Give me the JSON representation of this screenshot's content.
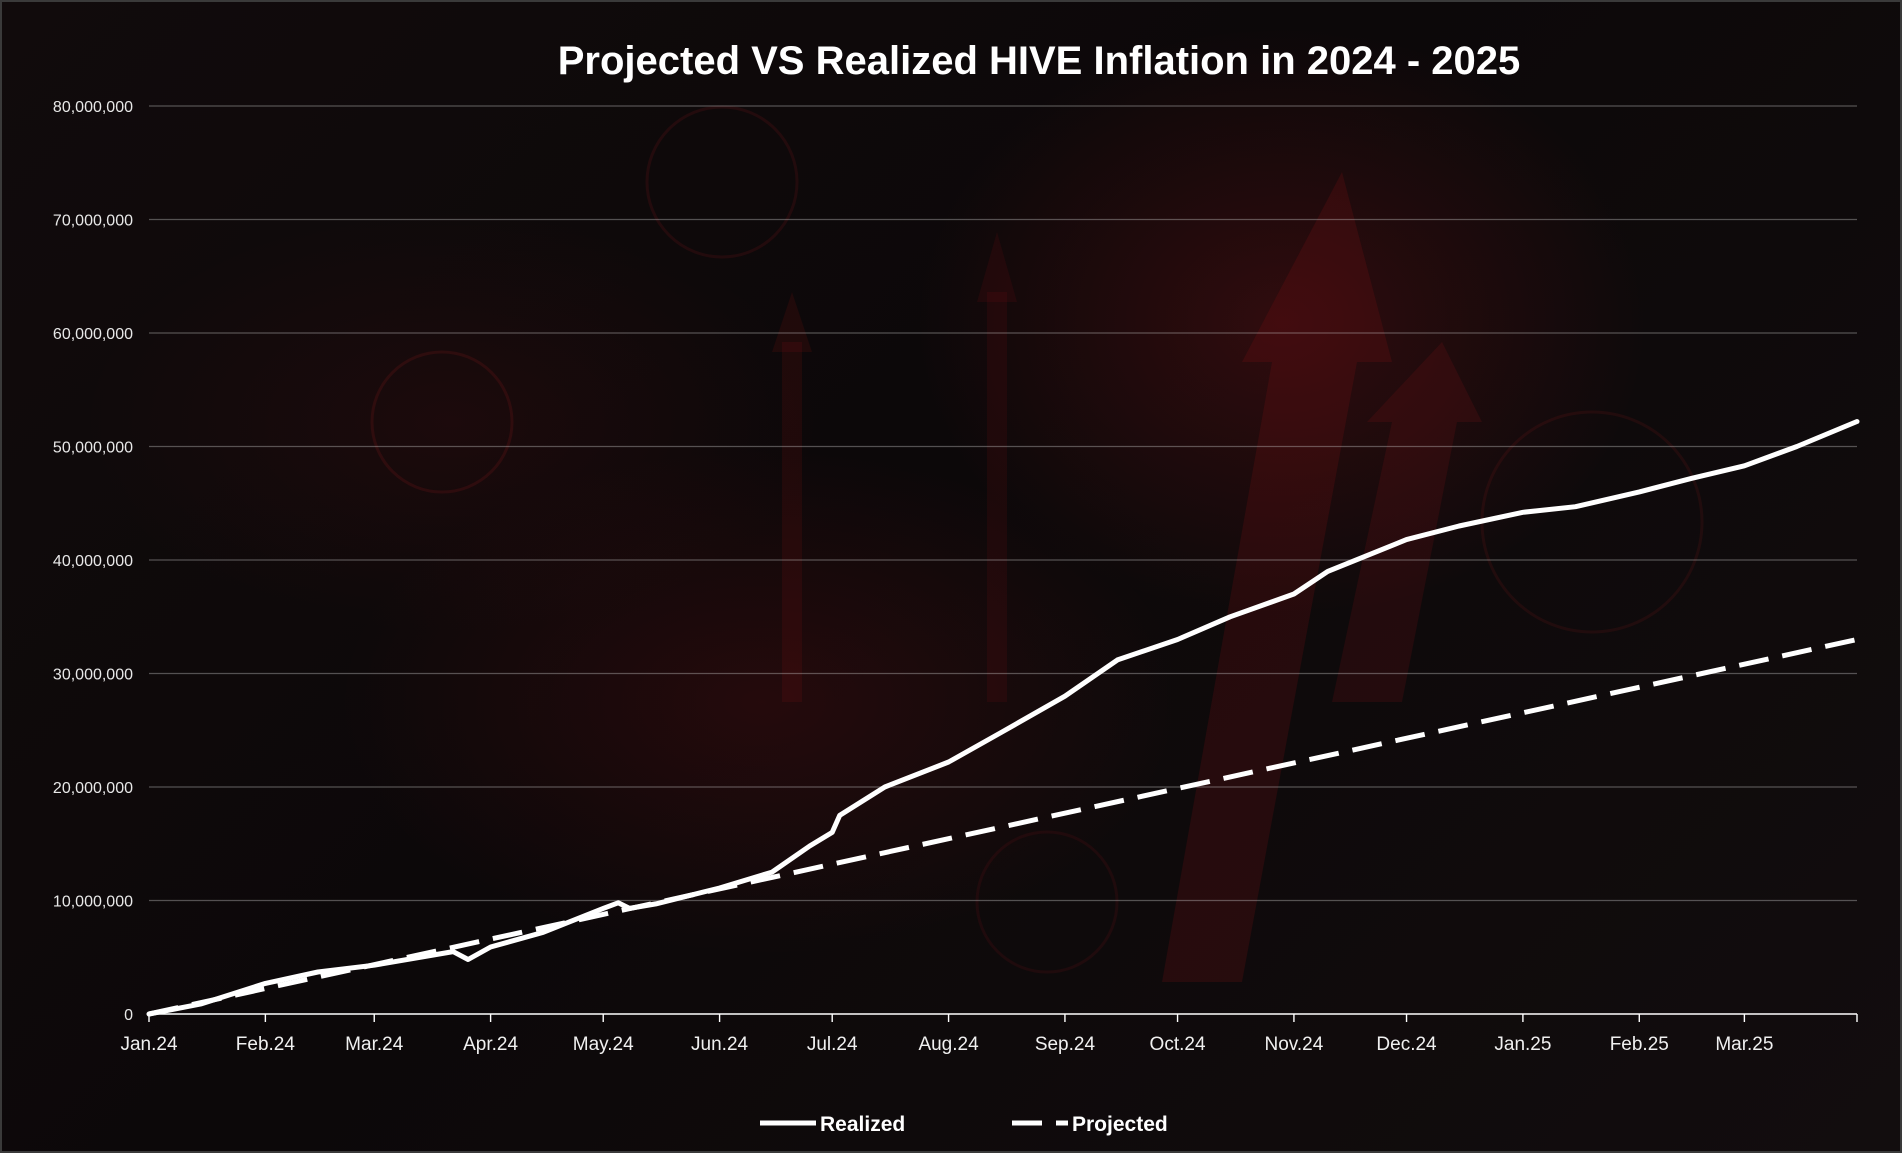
{
  "chart_data": {
    "type": "line",
    "title": "Projected VS Realized HIVE Inflation in 2024 - 2025",
    "xlabel": "",
    "ylabel": "",
    "ylim": [
      0,
      80000000
    ],
    "y_ticks": [
      "0",
      "10,000,000",
      "20,000,000",
      "30,000,000",
      "40,000,000",
      "50,000,000",
      "60,000,000",
      "70,000,000",
      "80,000,000"
    ],
    "y_tick_values": [
      0,
      10000000,
      20000000,
      30000000,
      40000000,
      50000000,
      60000000,
      70000000,
      80000000
    ],
    "x_ticks": [
      "Jan.24",
      "Feb.24",
      "Mar.24",
      "Apr.24",
      "May.24",
      "Jun.24",
      "Jul.24",
      "Aug.24",
      "Sep.24",
      "Oct.24",
      "Nov.24",
      "Dec.24",
      "Jan.25",
      "Feb.25",
      "Mar.25"
    ],
    "xlim": [
      "2024-01-01",
      "2025-03-31"
    ],
    "grid": "horizontal",
    "legend_position": "bottom",
    "series": [
      {
        "name": "Realized",
        "style": "solid",
        "color": "#ffffff",
        "points": [
          [
            "2024-01-01",
            0
          ],
          [
            "2024-01-15",
            900000
          ],
          [
            "2024-02-01",
            2700000
          ],
          [
            "2024-02-15",
            3700000
          ],
          [
            "2024-03-01",
            4300000
          ],
          [
            "2024-03-15",
            5100000
          ],
          [
            "2024-03-22",
            5500000
          ],
          [
            "2024-03-26",
            4800000
          ],
          [
            "2024-04-01",
            5900000
          ],
          [
            "2024-04-15",
            7200000
          ],
          [
            "2024-05-01",
            9300000
          ],
          [
            "2024-05-05",
            9800000
          ],
          [
            "2024-05-08",
            9300000
          ],
          [
            "2024-05-15",
            9700000
          ],
          [
            "2024-06-01",
            11100000
          ],
          [
            "2024-06-15",
            12500000
          ],
          [
            "2024-06-25",
            14800000
          ],
          [
            "2024-07-01",
            16000000
          ],
          [
            "2024-07-03",
            17500000
          ],
          [
            "2024-07-15",
            20000000
          ],
          [
            "2024-08-01",
            22200000
          ],
          [
            "2024-08-15",
            24800000
          ],
          [
            "2024-09-01",
            28000000
          ],
          [
            "2024-09-15",
            31200000
          ],
          [
            "2024-10-01",
            33000000
          ],
          [
            "2024-10-15",
            35000000
          ],
          [
            "2024-11-01",
            37000000
          ],
          [
            "2024-11-10",
            39000000
          ],
          [
            "2024-12-01",
            41800000
          ],
          [
            "2024-12-15",
            43000000
          ],
          [
            "2025-01-01",
            44200000
          ],
          [
            "2025-01-15",
            44700000
          ],
          [
            "2025-02-01",
            46000000
          ],
          [
            "2025-02-15",
            47200000
          ],
          [
            "2025-03-01",
            48300000
          ],
          [
            "2025-03-15",
            50000000
          ],
          [
            "2025-03-31",
            52200000
          ]
        ]
      },
      {
        "name": "Projected",
        "style": "dashed",
        "color": "#ffffff",
        "points": [
          [
            "2024-01-01",
            0
          ],
          [
            "2025-03-31",
            33000000
          ]
        ]
      }
    ]
  }
}
